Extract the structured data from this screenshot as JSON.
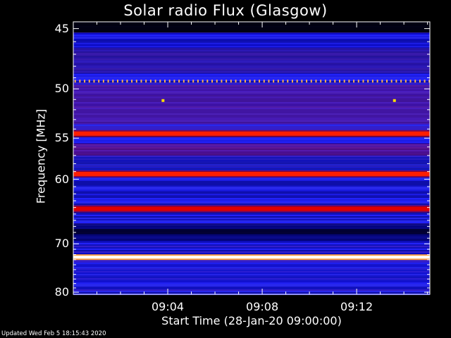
{
  "chart_data": {
    "type": "heatmap",
    "title": "Solar radio Flux (Glasgow)",
    "xlabel": "Start Time (28-Jan-20 09:00:00)",
    "ylabel": "Frequency [MHz]",
    "x_range_minutes": [
      0,
      15.1
    ],
    "x_ticks": [
      {
        "minute": 4,
        "label": "09:04"
      },
      {
        "minute": 8,
        "label": "09:08"
      },
      {
        "minute": 12,
        "label": "09:12"
      }
    ],
    "y_range": [
      44.5,
      80.5
    ],
    "y_ticks": [
      45,
      50,
      55,
      60,
      70,
      80
    ],
    "y_scale": "reciprocal",
    "colormap": [
      "#000000",
      "#0000b4",
      "#2a2aff",
      "#c8000a",
      "#ff1e00",
      "#ffc864",
      "#ffffff"
    ],
    "bands": [
      {
        "freq_mhz": 49.3,
        "type": "dotted",
        "color": "#ffb050"
      },
      {
        "freq_mhz": 54.5,
        "type": "strong",
        "color": "#ff1e00"
      },
      {
        "freq_mhz": 59.3,
        "type": "strong",
        "color": "#ff1e00"
      },
      {
        "freq_mhz": 64.2,
        "type": "strong",
        "color": "#e00000"
      },
      {
        "freq_mhz": 72.5,
        "type": "intense",
        "color": "#ffffff"
      }
    ],
    "point_features": [
      {
        "minute": 3.8,
        "freq_mhz": 51.1,
        "color": "#ffdd00"
      },
      {
        "minute": 13.6,
        "freq_mhz": 51.1,
        "color": "#ffdd00"
      }
    ]
  },
  "footer": "Updated Wed Feb  5 18:15:43 2020"
}
